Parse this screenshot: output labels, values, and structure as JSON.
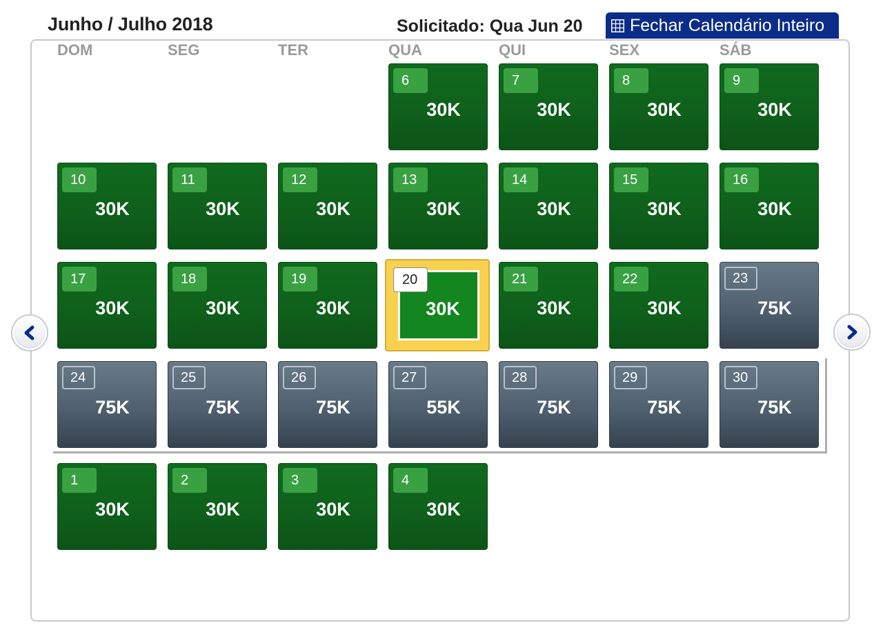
{
  "header": {
    "month_title": "Junho / Julho 2018",
    "requested": "Solicitado: Qua Jun 20",
    "close_button_label": "Fechar Calendário Inteiro",
    "close_button_icon": "grid-icon"
  },
  "weekdays": [
    "DOM",
    "SEG",
    "TER",
    "QUA",
    "QUI",
    "SEX",
    "SÁB"
  ],
  "days": [
    {
      "day": "6",
      "price": "30K",
      "status": "available"
    },
    {
      "day": "7",
      "price": "30K",
      "status": "available"
    },
    {
      "day": "8",
      "price": "30K",
      "status": "available"
    },
    {
      "day": "9",
      "price": "30K",
      "status": "available"
    },
    {
      "day": "10",
      "price": "30K",
      "status": "available"
    },
    {
      "day": "11",
      "price": "30K",
      "status": "available"
    },
    {
      "day": "12",
      "price": "30K",
      "status": "available"
    },
    {
      "day": "13",
      "price": "30K",
      "status": "available"
    },
    {
      "day": "14",
      "price": "30K",
      "status": "available"
    },
    {
      "day": "15",
      "price": "30K",
      "status": "available"
    },
    {
      "day": "16",
      "price": "30K",
      "status": "available"
    },
    {
      "day": "17",
      "price": "30K",
      "status": "available"
    },
    {
      "day": "18",
      "price": "30K",
      "status": "available"
    },
    {
      "day": "19",
      "price": "30K",
      "status": "available"
    },
    {
      "day": "20",
      "price": "30K",
      "status": "selected"
    },
    {
      "day": "21",
      "price": "30K",
      "status": "available"
    },
    {
      "day": "22",
      "price": "30K",
      "status": "available"
    },
    {
      "day": "23",
      "price": "75K",
      "status": "higher"
    },
    {
      "day": "24",
      "price": "75K",
      "status": "higher"
    },
    {
      "day": "25",
      "price": "75K",
      "status": "higher"
    },
    {
      "day": "26",
      "price": "75K",
      "status": "higher"
    },
    {
      "day": "27",
      "price": "55K",
      "status": "higher"
    },
    {
      "day": "28",
      "price": "75K",
      "status": "higher"
    },
    {
      "day": "29",
      "price": "75K",
      "status": "higher"
    },
    {
      "day": "30",
      "price": "75K",
      "status": "higher"
    },
    {
      "day": "1",
      "price": "30K",
      "status": "available"
    },
    {
      "day": "2",
      "price": "30K",
      "status": "available"
    },
    {
      "day": "3",
      "price": "30K",
      "status": "available"
    },
    {
      "day": "4",
      "price": "30K",
      "status": "available"
    }
  ],
  "navigation": {
    "prev_icon": "chevron-left-icon",
    "next_icon": "chevron-right-icon"
  },
  "colors": {
    "available": "#0f6a1d",
    "higher": "#50606f",
    "selected_frame": "#f8d24f",
    "button": "#0b2c88"
  }
}
